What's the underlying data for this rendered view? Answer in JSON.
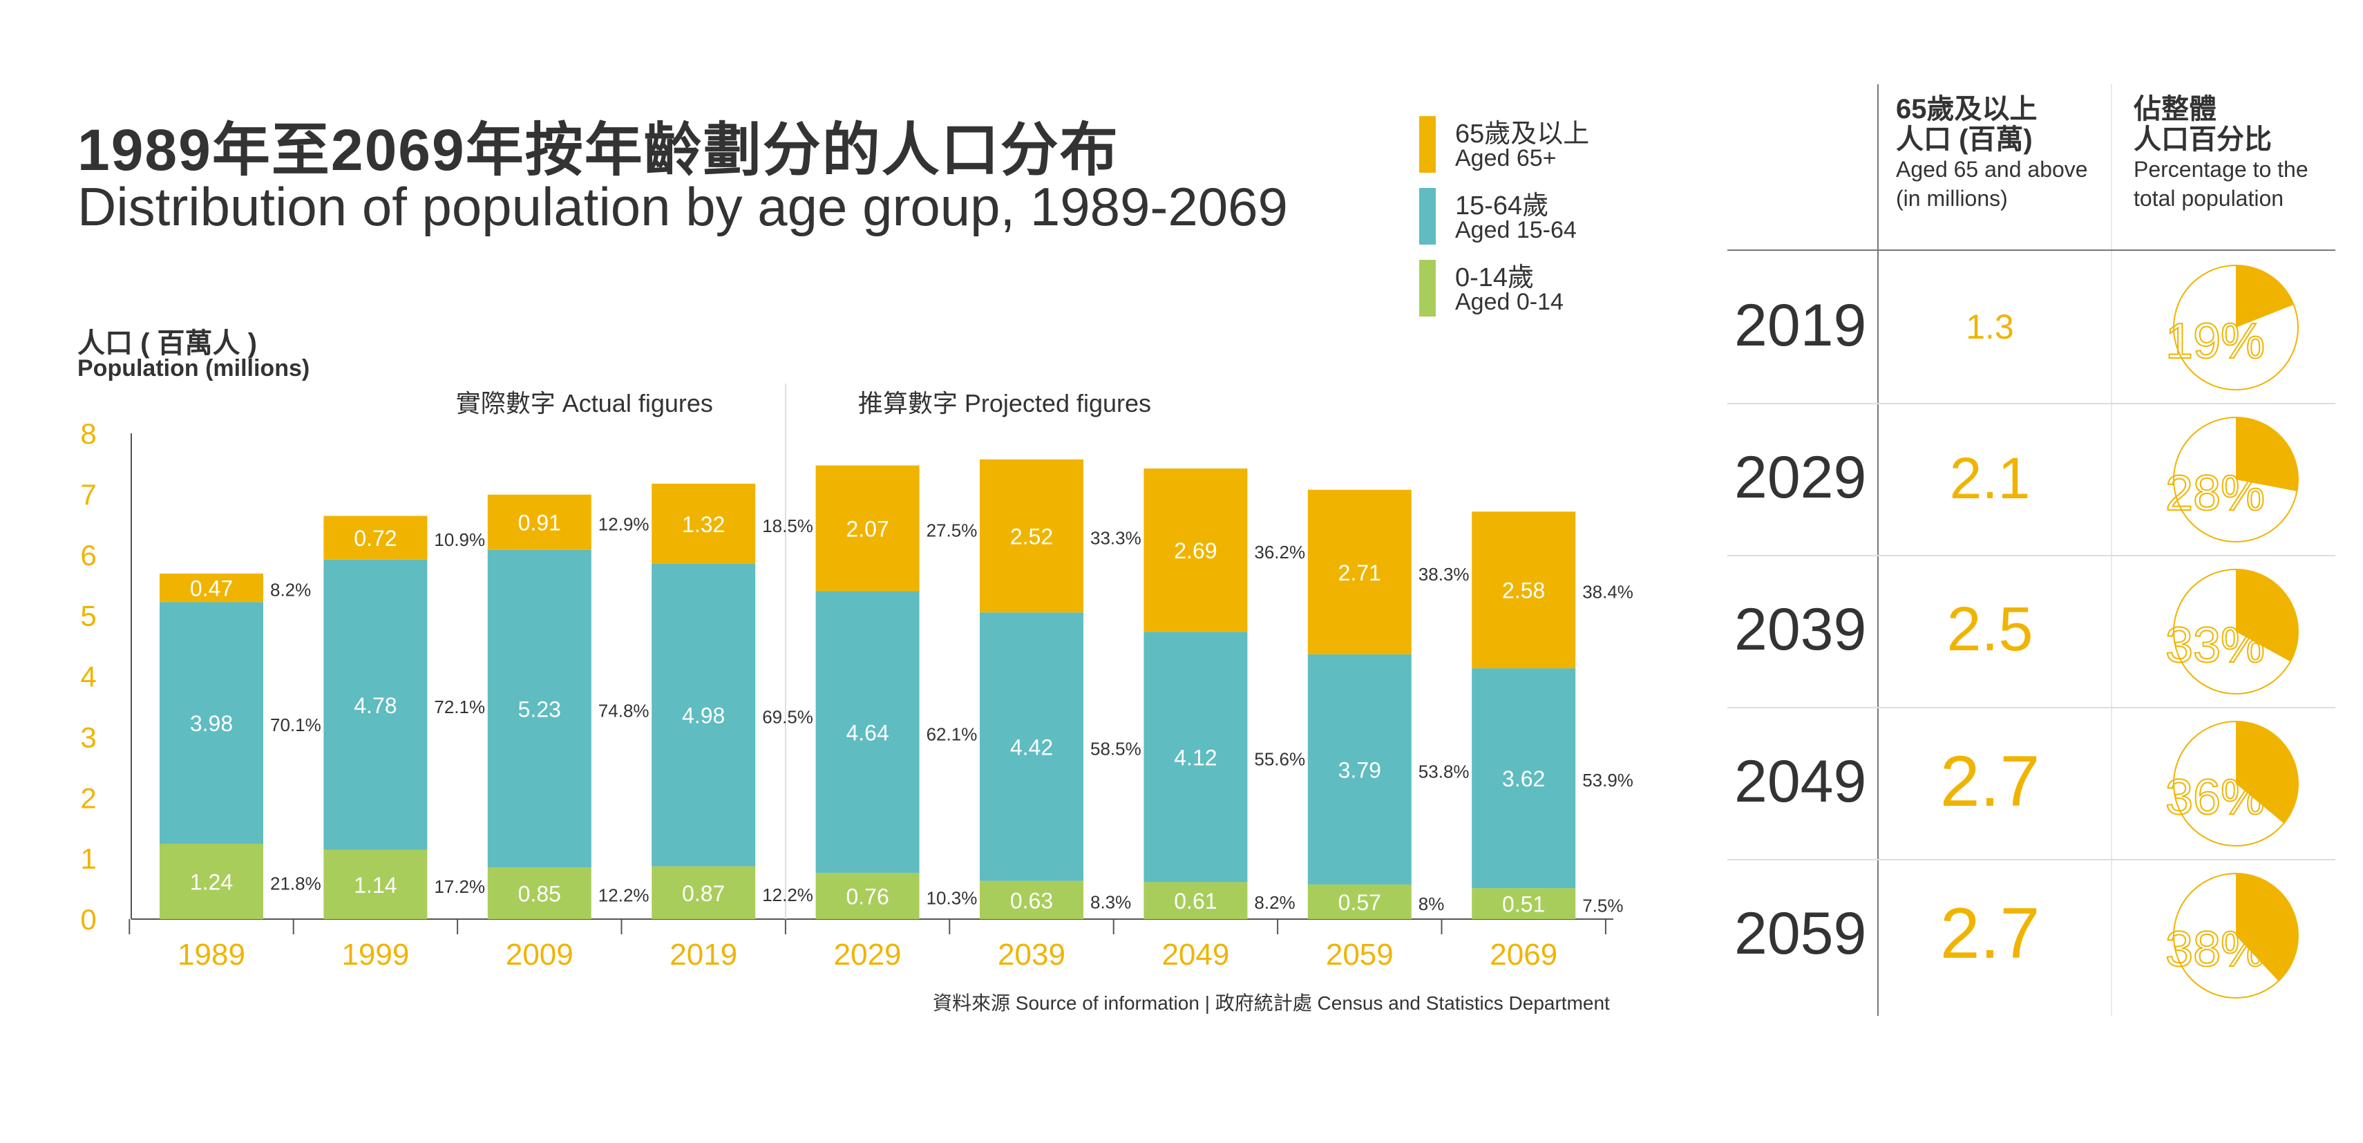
{
  "title_zh": "1989年至2069年按年齡劃分的人口分布",
  "title_en": "Distribution of population by age group, 1989-2069",
  "colors": {
    "aged65": "#f0b400",
    "aged15_64": "#5fbcc0",
    "aged0_14": "#a9cd5b",
    "axis_text": "#f0b400",
    "text": "#333333"
  },
  "legend": [
    {
      "zh": "65歲及以上",
      "en": "Aged 65+"
    },
    {
      "zh": "15-64歲",
      "en": "Aged 15-64"
    },
    {
      "zh": "0-14歲",
      "en": "Aged 0-14"
    }
  ],
  "source": "資料來源 Source of information | 政府統計處 Census and Statistics Department",
  "chart_data": {
    "type": "bar",
    "stacked": true,
    "ylabel_zh": "人口 ( 百萬人 )",
    "ylabel_en": "Population (millions)",
    "ylim": [
      0,
      8
    ],
    "yticks": [
      0,
      1,
      2,
      3,
      4,
      5,
      6,
      7,
      8
    ],
    "section_labels": {
      "actual": "實際數字  Actual figures",
      "projected": "推算數字  Projected figures"
    },
    "categories": [
      "1989",
      "1999",
      "2009",
      "2019",
      "2029",
      "2039",
      "2049",
      "2059",
      "2069"
    ],
    "series": [
      {
        "name": "0-14歲 Aged 0-14",
        "values": [
          1.24,
          1.14,
          0.85,
          0.87,
          0.76,
          0.63,
          0.61,
          0.57,
          0.51
        ],
        "labels": [
          "1.24",
          "1.14",
          "0.85",
          "0.87",
          "0.76",
          "0.63",
          "0.61",
          "0.57",
          "0.51"
        ],
        "percent": [
          "21.8%",
          "17.2%",
          "12.2%",
          "12.2%",
          "10.3%",
          "8.3%",
          "8.2%",
          "8%",
          "7.5%"
        ]
      },
      {
        "name": "15-64歲 Aged 15-64",
        "values": [
          3.98,
          4.78,
          5.23,
          4.98,
          4.64,
          4.42,
          4.12,
          3.79,
          3.62
        ],
        "labels": [
          "3.98",
          "4.78",
          "5.23",
          "4.98",
          "4.64",
          "4.42",
          "4.12",
          "3.79",
          "3.62"
        ],
        "percent": [
          "70.1%",
          "72.1%",
          "74.8%",
          "69.5%",
          "62.1%",
          "58.5%",
          "55.6%",
          "53.8%",
          "53.9%"
        ]
      },
      {
        "name": "65歲及以上 Aged 65+",
        "values": [
          0.47,
          0.72,
          0.91,
          1.32,
          2.07,
          2.52,
          2.69,
          2.71,
          2.58
        ],
        "labels": [
          "0.47",
          "0.72",
          "0.91",
          "1.32",
          "2.07",
          "2.52",
          "2.69",
          "2.71",
          "2.58"
        ],
        "percent": [
          "8.2%",
          "10.9%",
          "12.9%",
          "18.5%",
          "27.5%",
          "33.3%",
          "36.2%",
          "38.3%",
          "38.4%"
        ]
      }
    ]
  },
  "table": {
    "header_aged_zh": "65歲及以上\n人口 (百萬)",
    "header_aged_en": "Aged 65 and above\n(in millions)",
    "header_pct_zh": "佔整體\n人口百分比",
    "header_pct_en": "Percentage to the\ntotal population",
    "rows": [
      {
        "year": "2019",
        "value": "1.3",
        "percent_label": "19%",
        "fraction": 0.19
      },
      {
        "year": "2029",
        "value": "2.1",
        "percent_label": "28%",
        "fraction": 0.28
      },
      {
        "year": "2039",
        "value": "2.5",
        "percent_label": "33%",
        "fraction": 0.33
      },
      {
        "year": "2049",
        "value": "2.7",
        "percent_label": "36%",
        "fraction": 0.36
      },
      {
        "year": "2059",
        "value": "2.7",
        "percent_label": "38%",
        "fraction": 0.38
      }
    ]
  }
}
